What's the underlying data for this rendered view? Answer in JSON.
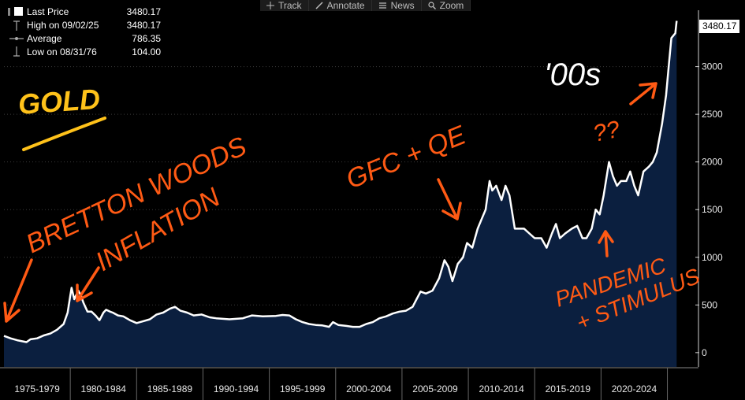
{
  "toolbar": {
    "track_label": "Track",
    "annotate_label": "Annotate",
    "news_label": "News",
    "zoom_label": "Zoom"
  },
  "legend": {
    "last_price_label": "Last Price",
    "last_price_value": "3480.17",
    "high_label": "High on 09/02/25",
    "high_value": "3480.17",
    "average_label": "Average",
    "average_value": "786.35",
    "low_label": "Low on 08/31/76",
    "low_value": "104.00"
  },
  "last_price_tag": "3480.17",
  "annotations": {
    "gold": "GOLD",
    "bretton_woods": "BRETTON WOODS",
    "inflation": "INFLATION",
    "gfc_qe": "GFC + QE",
    "oos": "'00s",
    "question": "??",
    "pandemic": "PANDEMIC",
    "stimulus": "+ STIMULUS"
  },
  "colors": {
    "background": "#000000",
    "area_fill": "#0b1f3f",
    "line": "#ffffff",
    "annotation_orange": "#ff5a14",
    "annotation_yellow": "#ffc21a",
    "annotation_white": "#ffffff",
    "grid": "#3a3a3a"
  },
  "chart_data": {
    "type": "area",
    "title": "",
    "xlabel": "",
    "ylabel": "",
    "xlim": [
      1975.0,
      2025.8
    ],
    "ylim": [
      -150,
      3550
    ],
    "y_ticks": [
      0,
      500,
      1000,
      1500,
      2000,
      2500,
      3000
    ],
    "y_tick_labels": [
      "0",
      "500",
      "1000",
      "1500",
      "2000",
      "2500",
      "3000"
    ],
    "x_tick_labels": [
      "1975-1979",
      "1980-1984",
      "1985-1989",
      "1990-1994",
      "1995-1999",
      "2000-2004",
      "2005-2009",
      "2010-2014",
      "2015-2019",
      "2020-2024"
    ],
    "x_tick_ranges": [
      [
        1975,
        1980
      ],
      [
        1980,
        1985
      ],
      [
        1985,
        1990
      ],
      [
        1990,
        1995
      ],
      [
        1995,
        2000
      ],
      [
        2000,
        2005
      ],
      [
        2005,
        2010
      ],
      [
        2010,
        2015
      ],
      [
        2015,
        2020
      ],
      [
        2020,
        2025
      ]
    ],
    "grid": "horizontal dotted",
    "series": [
      {
        "name": "",
        "x": [
          1975.0,
          1975.5,
          1976.0,
          1976.7,
          1977.0,
          1977.5,
          1978.0,
          1978.5,
          1979.0,
          1979.5,
          1979.8,
          1980.0,
          1980.1,
          1980.3,
          1980.6,
          1980.8,
          1981.0,
          1981.3,
          1981.6,
          1981.9,
          1982.2,
          1982.5,
          1982.7,
          1983.0,
          1983.2,
          1983.6,
          1984.0,
          1984.5,
          1985.0,
          1985.5,
          1986.0,
          1986.5,
          1987.0,
          1987.5,
          1987.9,
          1988.3,
          1988.8,
          1989.3,
          1989.9,
          1990.5,
          1991.0,
          1992.0,
          1993.0,
          1993.7,
          1994.5,
          1995.5,
          1996.0,
          1996.5,
          1997.0,
          1997.5,
          1998.0,
          1998.5,
          1999.0,
          1999.5,
          1999.8,
          2000.2,
          2000.8,
          2001.3,
          2001.8,
          2002.3,
          2002.8,
          2003.3,
          2003.8,
          2004.3,
          2004.8,
          2005.3,
          2005.8,
          2006.1,
          2006.4,
          2006.8,
          2007.3,
          2007.8,
          2008.2,
          2008.5,
          2008.8,
          2009.2,
          2009.6,
          2009.9,
          2010.3,
          2010.7,
          2011.0,
          2011.3,
          2011.6,
          2011.8,
          2012.1,
          2012.5,
          2012.8,
          2013.1,
          2013.5,
          2013.8,
          2014.2,
          2014.6,
          2015.0,
          2015.5,
          2015.9,
          2016.3,
          2016.6,
          2016.9,
          2017.3,
          2017.8,
          2018.2,
          2018.6,
          2018.9,
          2019.3,
          2019.6,
          2019.9,
          2020.2,
          2020.6,
          2020.9,
          2021.2,
          2021.5,
          2021.9,
          2022.2,
          2022.5,
          2022.8,
          2023.2,
          2023.6,
          2023.9,
          2024.2,
          2024.6,
          2024.9,
          2025.1,
          2025.3,
          2025.6,
          2025.7
        ],
        "values": [
          175,
          150,
          130,
          110,
          140,
          150,
          180,
          200,
          240,
          300,
          420,
          600,
          680,
          560,
          650,
          600,
          520,
          430,
          430,
          390,
          340,
          420,
          450,
          430,
          420,
          390,
          380,
          340,
          310,
          330,
          350,
          400,
          420,
          460,
          480,
          440,
          420,
          390,
          400,
          370,
          360,
          350,
          360,
          390,
          380,
          385,
          395,
          390,
          350,
          320,
          300,
          290,
          285,
          270,
          320,
          290,
          280,
          270,
          270,
          300,
          320,
          360,
          380,
          410,
          430,
          440,
          480,
          560,
          640,
          620,
          650,
          780,
          970,
          900,
          750,
          930,
          1000,
          1150,
          1100,
          1300,
          1400,
          1500,
          1800,
          1700,
          1750,
          1600,
          1750,
          1650,
          1300,
          1300,
          1300,
          1250,
          1200,
          1200,
          1100,
          1250,
          1350,
          1200,
          1250,
          1300,
          1330,
          1200,
          1200,
          1300,
          1500,
          1450,
          1650,
          2000,
          1850,
          1750,
          1800,
          1800,
          1900,
          1750,
          1650,
          1900,
          1950,
          2000,
          2100,
          2400,
          2700,
          3000,
          3300,
          3350,
          3480.17
        ]
      }
    ],
    "last_price": 3480.17
  }
}
